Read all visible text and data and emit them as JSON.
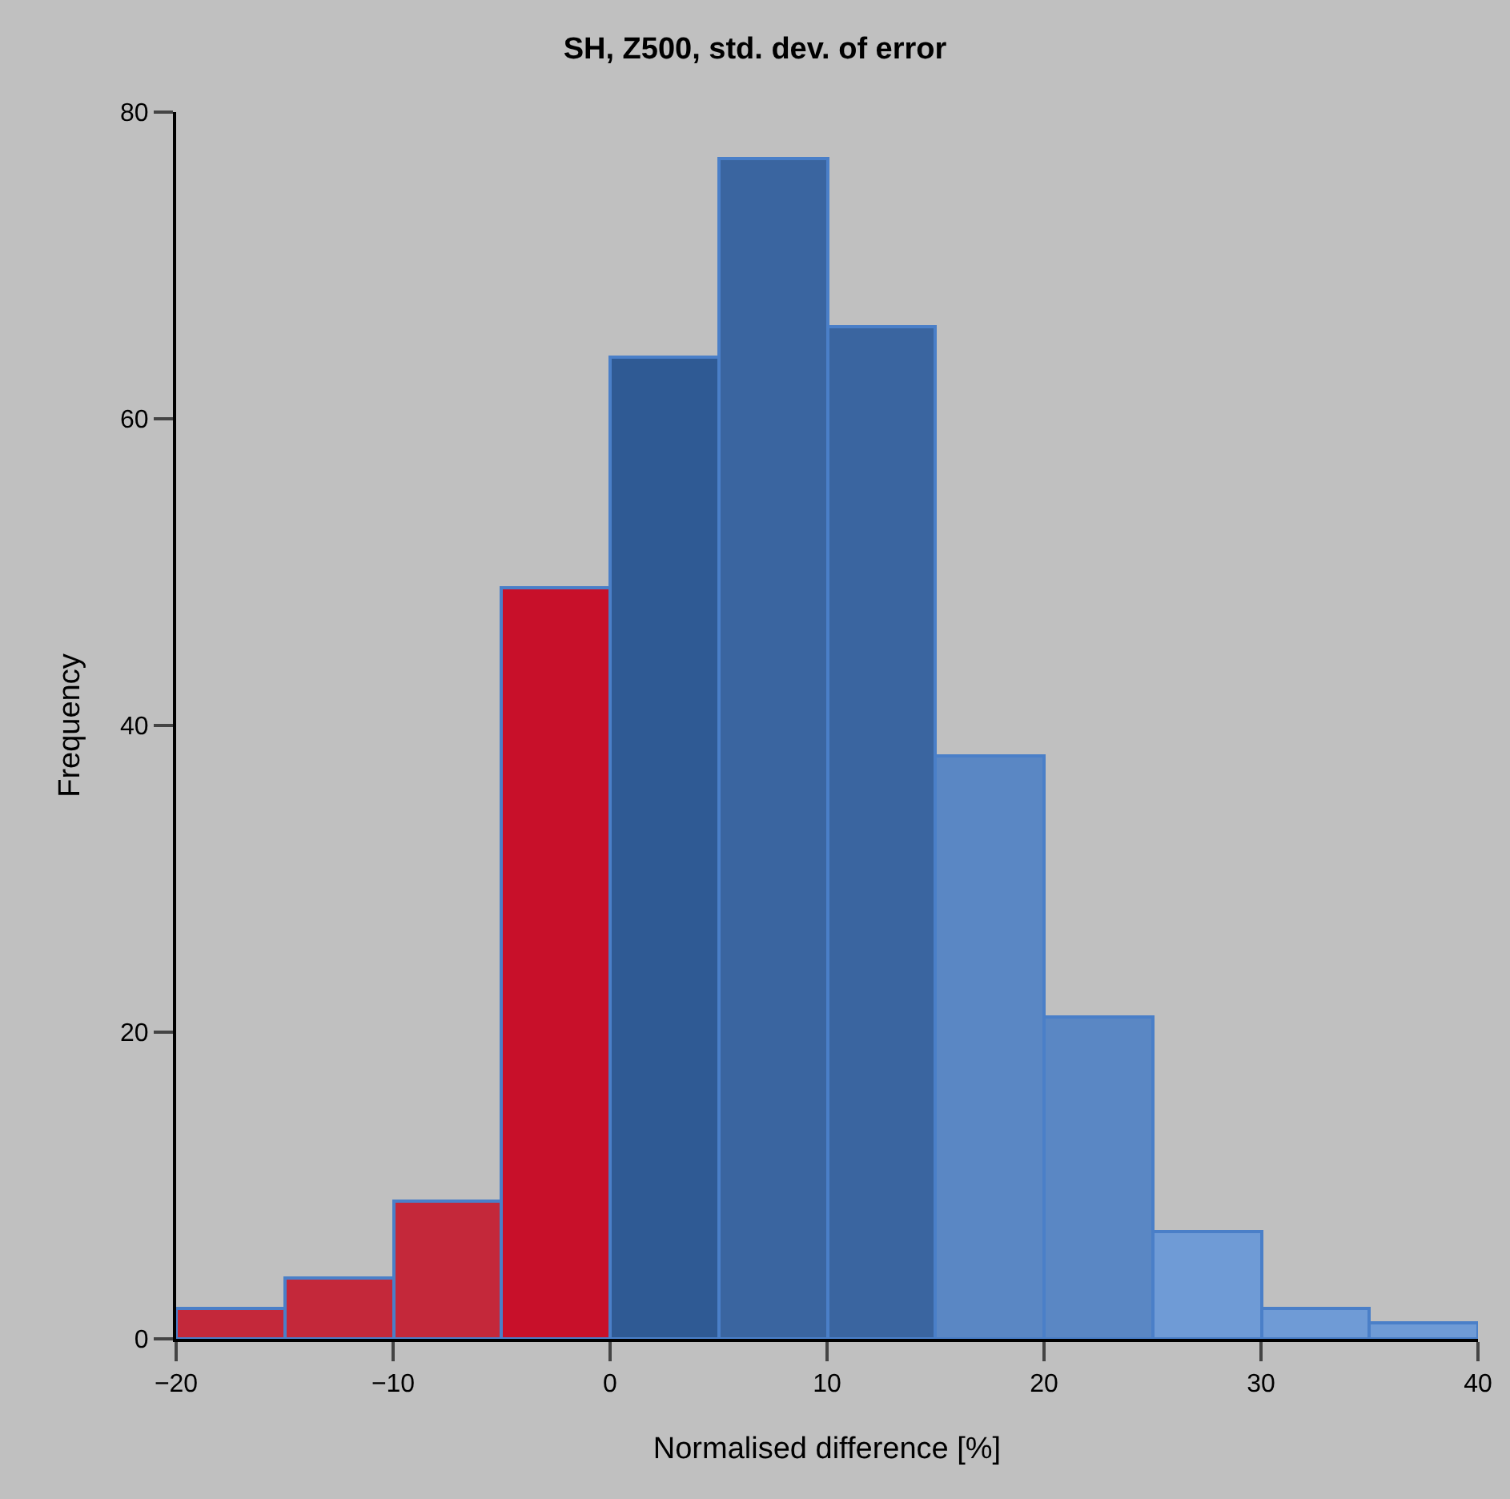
{
  "chart_data": {
    "type": "histogram",
    "title": "SH, Z500, std. dev. of error",
    "xlabel": "Normalised difference [%]",
    "ylabel": "Frequency",
    "bins": [
      -20,
      -15,
      -10,
      -5,
      0,
      5,
      10,
      15,
      20,
      25,
      30,
      35,
      40
    ],
    "values": [
      2,
      4,
      9,
      49,
      64,
      77,
      66,
      38,
      21,
      7,
      2,
      1
    ],
    "colors": [
      "#c4283a",
      "#c4283a",
      "#c4283a",
      "#c8102a",
      "#2f5a94",
      "#3a65a0",
      "#3a65a0",
      "#5a87c4",
      "#5a87c4",
      "#6f9bd6",
      "#6f9bd6",
      "#6f9bd6"
    ],
    "xlim": [
      -20,
      40
    ],
    "xticks": [
      -20,
      -10,
      0,
      10,
      20,
      30,
      40
    ],
    "ylim": [
      0,
      80
    ],
    "yticks": [
      0,
      20,
      40,
      60,
      80
    ],
    "grid": false
  }
}
